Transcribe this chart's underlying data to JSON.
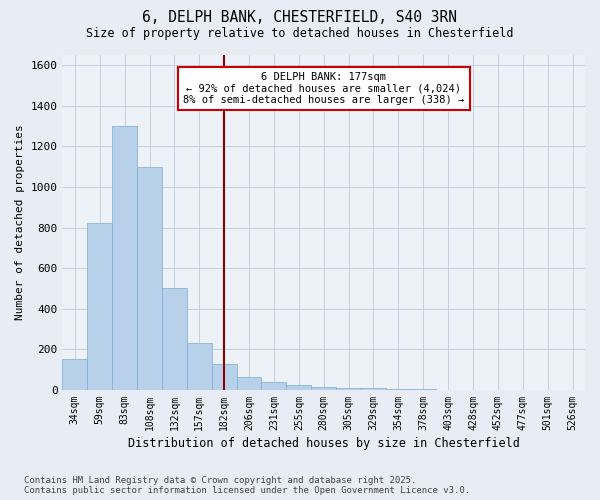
{
  "title_line1": "6, DELPH BANK, CHESTERFIELD, S40 3RN",
  "title_line2": "Size of property relative to detached houses in Chesterfield",
  "xlabel": "Distribution of detached houses by size in Chesterfield",
  "ylabel": "Number of detached properties",
  "categories": [
    "34sqm",
    "59sqm",
    "83sqm",
    "108sqm",
    "132sqm",
    "157sqm",
    "182sqm",
    "206sqm",
    "231sqm",
    "255sqm",
    "280sqm",
    "305sqm",
    "329sqm",
    "354sqm",
    "378sqm",
    "403sqm",
    "428sqm",
    "452sqm",
    "477sqm",
    "501sqm",
    "526sqm"
  ],
  "values": [
    150,
    820,
    1300,
    1100,
    500,
    230,
    130,
    65,
    40,
    25,
    15,
    10,
    8,
    5,
    3,
    2,
    1,
    1,
    1,
    1,
    1
  ],
  "bar_color": "#b8d0ea",
  "bar_edge_color": "#7aadd4",
  "vline_x": 6,
  "vline_color": "#8b0000",
  "annotation_text": "6 DELPH BANK: 177sqm\n← 92% of detached houses are smaller (4,024)\n8% of semi-detached houses are larger (338) →",
  "annotation_box_color": "#ffffff",
  "annotation_box_edge": "#cc0000",
  "ylim": [
    0,
    1650
  ],
  "yticks": [
    0,
    200,
    400,
    600,
    800,
    1000,
    1200,
    1400,
    1600
  ],
  "footer": "Contains HM Land Registry data © Crown copyright and database right 2025.\nContains public sector information licensed under the Open Government Licence v3.0.",
  "bg_color": "#e8edf5",
  "plot_bg_color": "#edf1f8"
}
